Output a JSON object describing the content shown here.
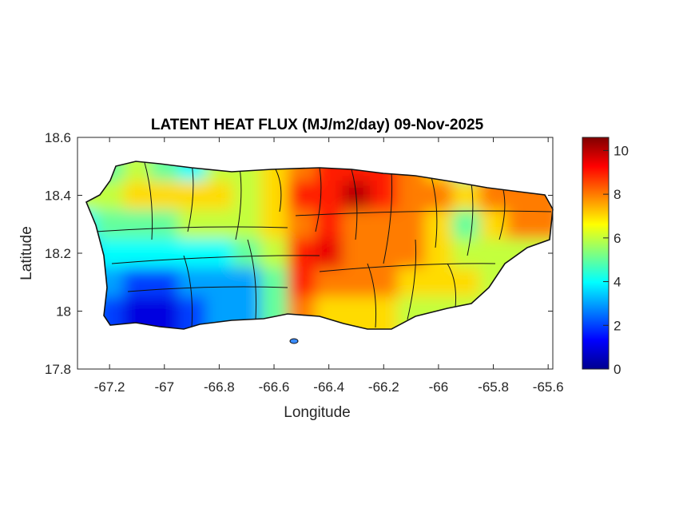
{
  "chart_data": {
    "type": "heatmap",
    "title": "LATENT HEAT FLUX (MJ/m2/day) 09-Nov-2025",
    "xlabel": "Longitude",
    "ylabel": "Latitude",
    "xlim": [
      -67.317,
      -65.583
    ],
    "ylim": [
      17.8,
      18.6
    ],
    "xticks": [
      -67.2,
      -67,
      -66.8,
      -66.6,
      -66.4,
      -66.2,
      -66,
      -65.8,
      -65.6
    ],
    "xtick_labels": [
      "-67.2",
      "-67",
      "-66.8",
      "-66.6",
      "-66.4",
      "-66.2",
      "-66",
      "-65.8",
      "-65.6"
    ],
    "yticks": [
      17.8,
      18,
      18.2,
      18.4,
      18.6
    ],
    "ytick_labels": [
      "17.8",
      "18",
      "18.2",
      "18.4",
      "18.6"
    ],
    "colorbar": {
      "colormap": "jet",
      "range": [
        0,
        10.6
      ],
      "ticks": [
        0,
        2,
        4,
        6,
        8,
        10
      ],
      "tick_labels": [
        "0",
        "2",
        "4",
        "6",
        "8",
        "10"
      ]
    },
    "grid_lon": [
      -67.25,
      -67.15,
      -67.05,
      -66.95,
      -66.85,
      -66.75,
      -66.65,
      -66.55,
      -66.45,
      -66.35,
      -66.25,
      -66.15,
      -66.05,
      -65.95,
      -65.85,
      -65.75,
      -65.65
    ],
    "grid_lat": [
      18.45,
      18.35,
      18.25,
      18.15,
      18.05,
      17.95
    ],
    "values": [
      [
        5,
        5,
        6,
        5,
        4,
        6,
        6,
        7,
        8,
        9,
        9,
        9,
        8,
        7,
        5,
        8,
        9
      ],
      [
        6,
        6,
        7,
        7,
        7,
        7,
        6,
        7,
        9,
        9,
        10,
        9,
        8,
        8,
        7,
        8,
        8
      ],
      [
        4,
        5,
        5,
        5,
        6,
        6,
        6,
        7,
        8,
        9,
        8,
        8,
        8,
        7,
        5,
        7,
        8
      ],
      [
        3,
        4,
        4,
        4,
        4,
        4,
        5,
        6,
        9,
        9.5,
        8,
        8,
        8,
        7,
        6,
        6,
        6
      ],
      [
        3,
        3,
        2,
        2,
        3,
        3,
        3,
        5,
        9,
        8,
        8,
        8,
        7,
        7,
        7,
        6,
        6
      ],
      [
        3,
        2,
        1,
        1,
        2,
        3,
        3,
        5,
        8,
        7,
        7,
        7,
        6,
        6,
        6,
        6,
        6
      ]
    ]
  }
}
